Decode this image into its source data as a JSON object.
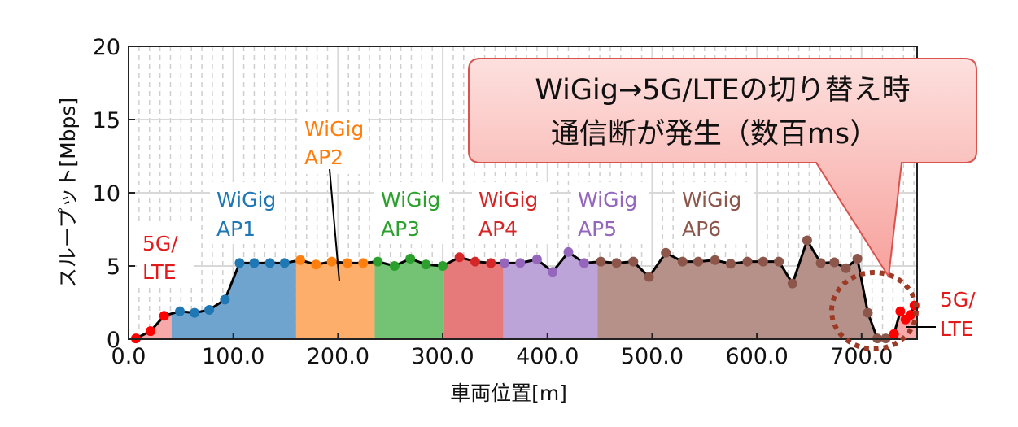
{
  "chart_data": {
    "type": "line",
    "xlabel": "車両位置[m]",
    "ylabel": "スループット[Mbps]",
    "xlim": [
      0,
      753
    ],
    "ylim": [
      0,
      20
    ],
    "xticks": [
      "0.0",
      "100.0",
      "200.0",
      "300.0",
      "400.0",
      "500.0",
      "600.0",
      "700.0"
    ],
    "xtick_values": [
      0,
      100,
      200,
      300,
      400,
      500,
      600,
      700
    ],
    "yticks": [
      "0",
      "5",
      "10",
      "15",
      "20"
    ],
    "ytick_values": [
      0,
      5,
      10,
      15,
      20
    ],
    "grid": true,
    "line_color": "#000000",
    "series": [
      {
        "name": "5G/LTE",
        "color": "#ff0000",
        "fill": "#f7a8a8",
        "range": [
          0,
          41
        ],
        "x": [
          7,
          21,
          34
        ],
        "y": [
          0.05,
          0.55,
          1.6
        ]
      },
      {
        "name": "WiGig AP1",
        "color": "#1f77b4",
        "fill": "#6fa4cf",
        "range": [
          41,
          160
        ],
        "x": [
          49,
          63,
          77,
          92,
          106,
          120,
          135,
          149
        ],
        "y": [
          1.9,
          1.8,
          2.0,
          2.7,
          5.2,
          5.2,
          5.2,
          5.2
        ]
      },
      {
        "name": "WiGig AP2",
        "color": "#ff7f0e",
        "fill": "#fdae6b",
        "range": [
          160,
          235
        ],
        "x": [
          164,
          179,
          194,
          209,
          224
        ],
        "y": [
          5.4,
          5.1,
          5.3,
          5.2,
          5.2
        ]
      },
      {
        "name": "WiGig AP3",
        "color": "#2ca02c",
        "fill": "#74c274",
        "range": [
          235,
          301
        ],
        "x": [
          238,
          254,
          269,
          284,
          300
        ],
        "y": [
          5.3,
          5.0,
          5.5,
          5.1,
          5.0
        ]
      },
      {
        "name": "WiGig AP4",
        "color": "#d62728",
        "fill": "#e67a7b",
        "range": [
          301,
          358
        ],
        "x": [
          316,
          331,
          346
        ],
        "y": [
          5.6,
          5.3,
          5.2
        ]
      },
      {
        "name": "WiGig AP5",
        "color": "#9467bd",
        "fill": "#bca3d8",
        "range": [
          358,
          448
        ],
        "x": [
          359,
          374,
          390,
          405,
          420,
          435
        ],
        "y": [
          5.2,
          5.2,
          5.45,
          4.6,
          5.95,
          5.2
        ]
      },
      {
        "name": "WiGig AP6",
        "color": "#8c564b",
        "fill": "#b6918a",
        "range": [
          448,
          725
        ],
        "x": [
          451,
          466,
          482,
          497,
          513,
          529,
          544,
          560,
          575,
          591,
          606,
          621,
          634,
          648,
          661,
          674,
          685,
          696,
          706,
          715,
          723
        ],
        "y": [
          5.3,
          5.2,
          5.3,
          4.25,
          5.9,
          5.3,
          5.3,
          5.4,
          5.15,
          5.3,
          5.3,
          5.3,
          3.8,
          6.75,
          5.2,
          5.25,
          4.85,
          5.5,
          1.8,
          0.05,
          0.05
        ]
      },
      {
        "name": "5G/LTE",
        "color": "#ff0000",
        "fill": "#f7a8a8",
        "range": [
          725,
          753
        ],
        "x": [
          731,
          737,
          742,
          746.5,
          750.5
        ],
        "y": [
          0.35,
          1.9,
          1.35,
          1.65,
          2.3
        ]
      }
    ],
    "annotations": {
      "lte_left": [
        "5G/",
        "LTE"
      ],
      "ap1": [
        "WiGig",
        "AP1"
      ],
      "ap2": [
        "WiGig",
        "AP2"
      ],
      "ap3": [
        "WiGig",
        "AP3"
      ],
      "ap4": [
        "WiGig",
        "AP4"
      ],
      "ap5": [
        "WiGig",
        "AP5"
      ],
      "ap6": [
        "WiGig",
        "AP6"
      ],
      "lte_right": [
        "5G/",
        "LTE"
      ],
      "callout": [
        "WiGig→5G/LTEの切り替え時",
        "通信断が発生（数百ms）"
      ],
      "callout_fill": "#f9b3b0",
      "callout_border": "#d9534f",
      "highlight_ring_color": "#9c3a26"
    }
  }
}
